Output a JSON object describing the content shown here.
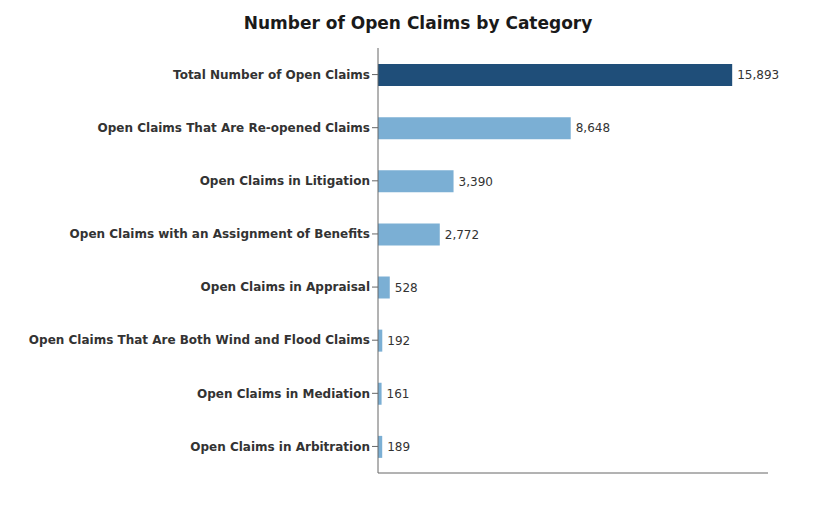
{
  "chart_data": {
    "type": "bar",
    "title": "Number of Open Claims by Category",
    "orientation": "horizontal",
    "categories": [
      "Open Claims in Arbitration",
      "Open Claims in Mediation",
      "Open Claims That Are Both Wind and Flood Claims",
      "Open Claims in Appraisal",
      "Open Claims with an Assignment of Benefits",
      "Open Claims in Litigation",
      "Open Claims That Are Re-opened Claims",
      "Total Number of Open Claims"
    ],
    "values": [
      189,
      161,
      192,
      528,
      2772,
      3390,
      8648,
      15893
    ],
    "value_labels": [
      "189",
      "161",
      "192",
      "528",
      "2,772",
      "3,390",
      "8,648",
      "15,893"
    ],
    "colors": [
      "#7bafd4",
      "#7bafd4",
      "#7bafd4",
      "#7bafd4",
      "#7bafd4",
      "#7bafd4",
      "#7bafd4",
      "#1f4e79"
    ],
    "xlim": [
      0,
      17500
    ],
    "grid": false,
    "data_labels": true,
    "tick_labels": "y"
  }
}
